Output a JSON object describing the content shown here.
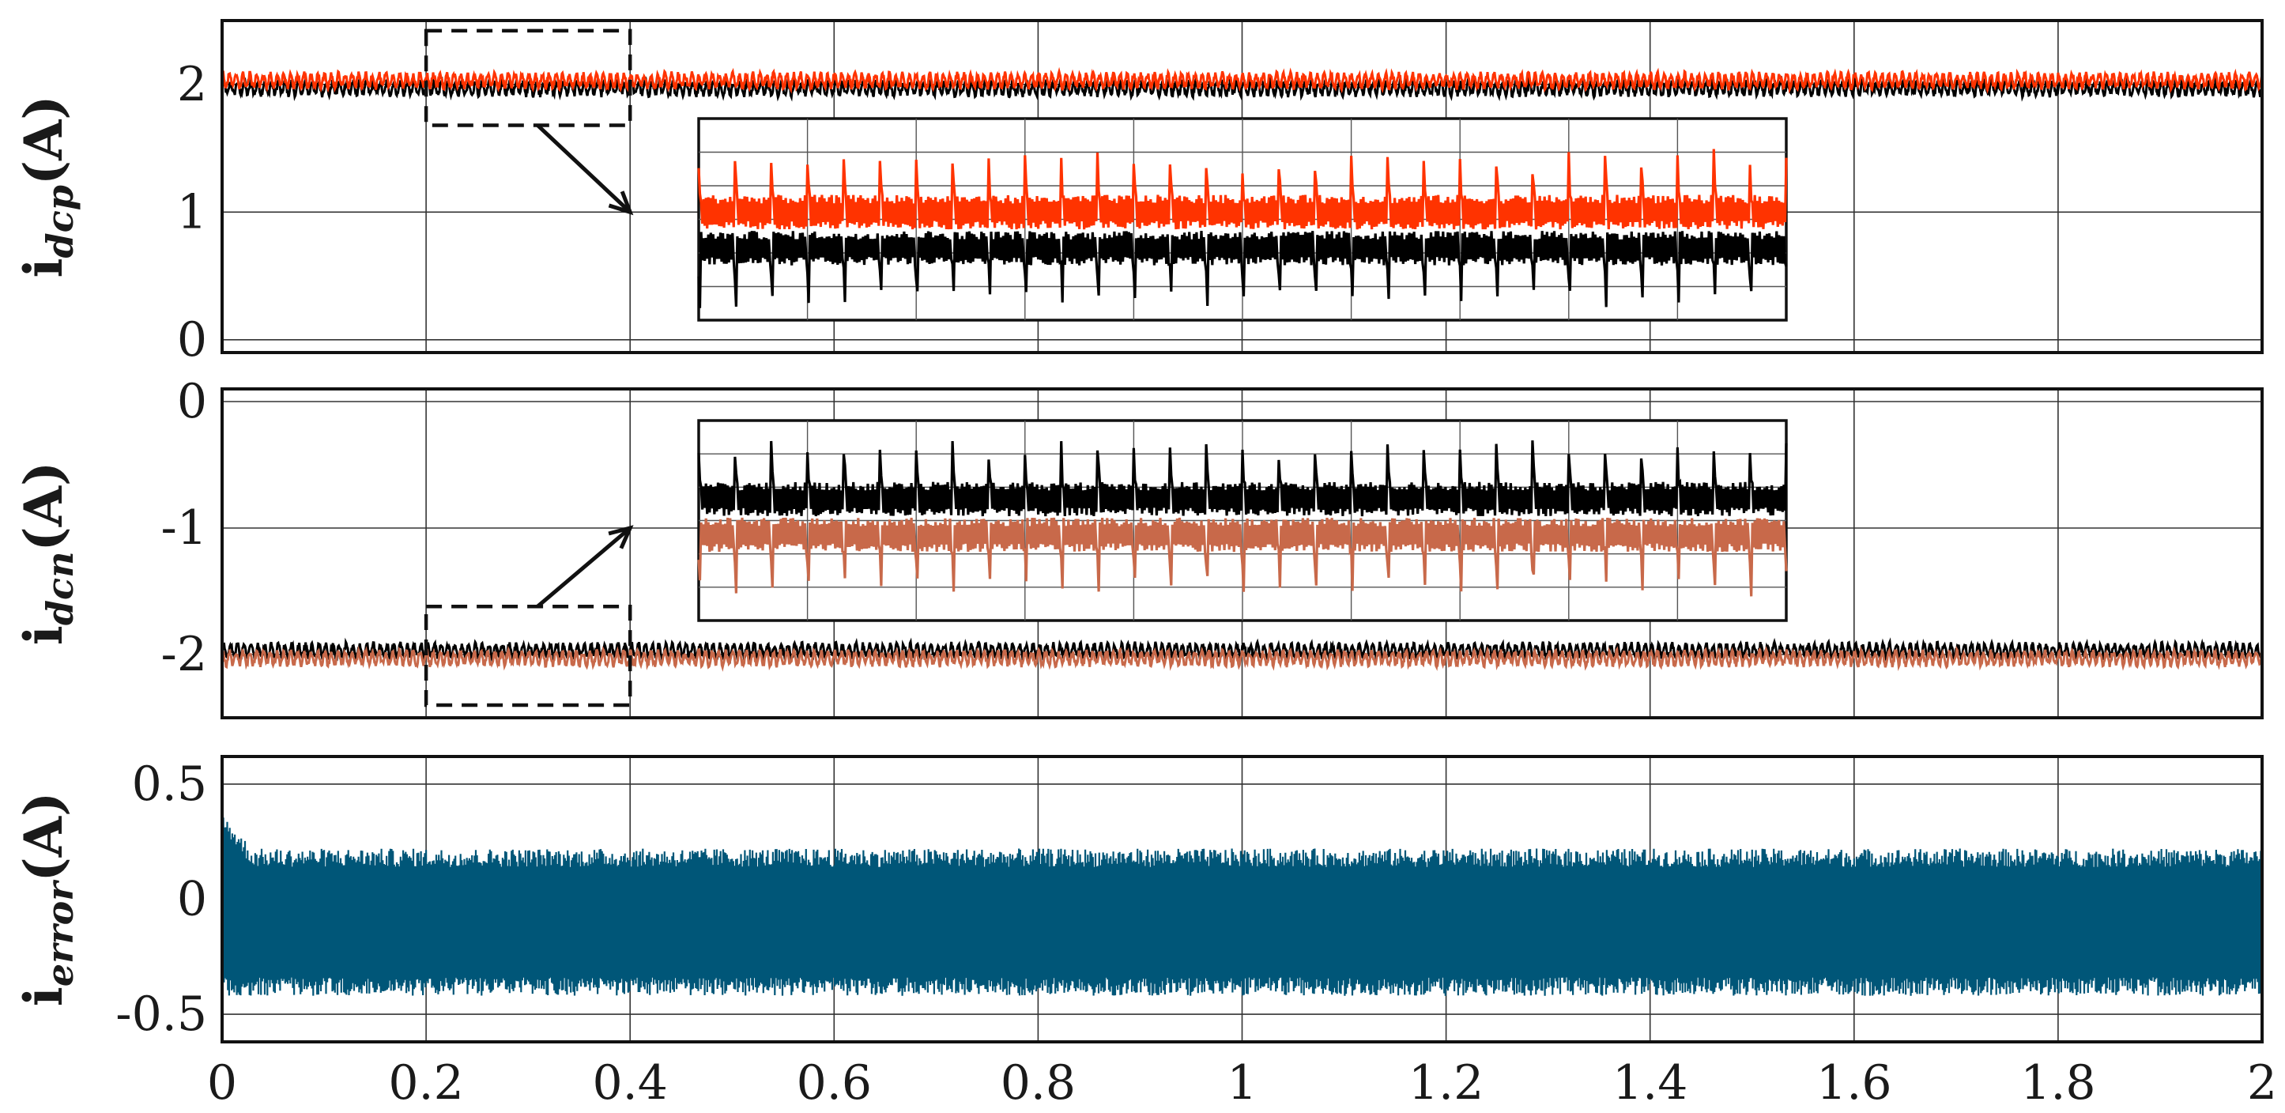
{
  "chart_data": [
    {
      "type": "line",
      "ylabel": {
        "main": "i",
        "sub": "dcp",
        "unit": "(A)"
      },
      "xlim": [
        0,
        2
      ],
      "ylim": [
        -0.1,
        2.5
      ],
      "yticks": [
        0,
        1,
        2
      ],
      "ytick_labels": [
        "0",
        "1",
        "2"
      ],
      "xticks": [
        0,
        0.2,
        0.4,
        0.6,
        0.8,
        1.0,
        1.2,
        1.4,
        1.6,
        1.8,
        2.0
      ],
      "grid": true,
      "series": [
        {
          "color": "#000000",
          "mean": 1.97,
          "ripple": 0.08
        },
        {
          "color": "#ff3300",
          "mean": 2.03,
          "ripple": 0.08
        }
      ],
      "zoom_region": {
        "x": [
          0.2,
          0.4
        ],
        "y": [
          1.68,
          2.42
        ]
      },
      "inset": {
        "y_center": 1.0,
        "y_span": 1.4,
        "series_means": [
          0.8,
          1.05
        ]
      }
    },
    {
      "type": "line",
      "ylabel": {
        "main": "i",
        "sub": "dcn",
        "unit": "(A)"
      },
      "xlim": [
        0,
        2
      ],
      "ylim": [
        -2.5,
        0.1
      ],
      "yticks": [
        -2,
        -1,
        0
      ],
      "ytick_labels": [
        "-2",
        "-1",
        "0"
      ],
      "xticks": [
        0,
        0.2,
        0.4,
        0.6,
        0.8,
        1.0,
        1.2,
        1.4,
        1.6,
        1.8,
        2.0
      ],
      "grid": true,
      "series": [
        {
          "color": "#000000",
          "mean": -1.97,
          "ripple": 0.08
        },
        {
          "color": "#c8694a",
          "mean": -2.03,
          "ripple": 0.08
        }
      ],
      "zoom_region": {
        "x": [
          0.2,
          0.4
        ],
        "y": [
          -2.4,
          -1.62
        ]
      },
      "inset": {
        "y_center": -1.0,
        "y_span": 1.4,
        "series_means": [
          -0.85,
          -1.1
        ]
      }
    },
    {
      "type": "line",
      "ylabel": {
        "main": "i",
        "sub": "error",
        "unit": "(A)"
      },
      "xlim": [
        0,
        2
      ],
      "ylim": [
        -0.62,
        0.62
      ],
      "yticks": [
        -0.5,
        0,
        0.5
      ],
      "ytick_labels": [
        "-0.5",
        "0",
        "0.5"
      ],
      "xticks": [
        0,
        0.2,
        0.4,
        0.6,
        0.8,
        1.0,
        1.2,
        1.4,
        1.6,
        1.8,
        2.0
      ],
      "xtick_labels": [
        "0",
        "0.2",
        "0.4",
        "0.6",
        "0.8",
        "1",
        "1.2",
        "1.4",
        "1.6",
        "1.8",
        "2"
      ],
      "grid": true,
      "series": [
        {
          "color": "#005678",
          "mean": -0.1,
          "band": [
            -0.42,
            0.22
          ],
          "initial_peak": 0.38
        }
      ]
    }
  ]
}
